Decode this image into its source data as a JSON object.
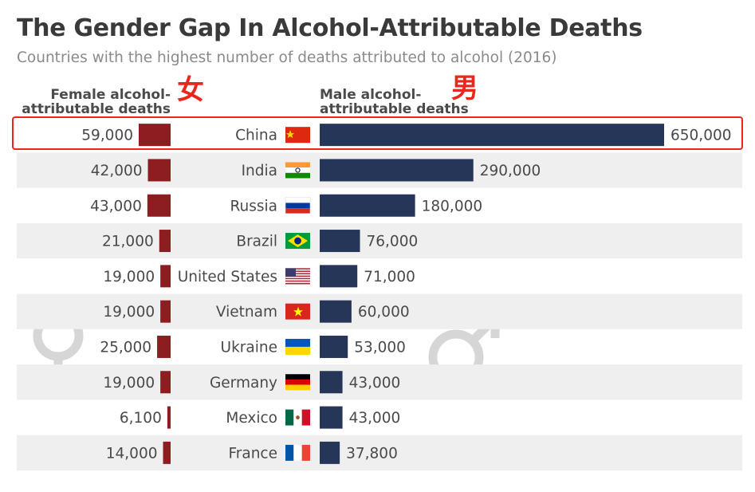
{
  "title": "The Gender Gap In Alcohol-Attributable Deaths",
  "subtitle": "Countries with the highest number of deaths attributed to alcohol (2016)",
  "female_header_line1": "Female alcohol-",
  "female_header_line2": "attributable deaths",
  "male_header_line1": "Male alcohol-",
  "male_header_line2": "attributable deaths",
  "female_cjk": "女",
  "male_cjk": "男",
  "colors": {
    "female_bar": "#8e1d21",
    "male_bar": "#263658",
    "row_stripe": "#efefef",
    "highlight": "#e8271f",
    "symbol": "#d6d6d6"
  },
  "chart_data": {
    "type": "bar",
    "title": "The Gender Gap In Alcohol-Attributable Deaths",
    "subtitle": "Countries with the highest number of deaths attributed to alcohol (2016)",
    "categories": [
      "China",
      "India",
      "Russia",
      "Brazil",
      "United States",
      "Vietnam",
      "Ukraine",
      "Germany",
      "Mexico",
      "France"
    ],
    "series": [
      {
        "name": "Female alcohol-attributable deaths",
        "values": [
          59000,
          42000,
          43000,
          21000,
          19000,
          19000,
          25000,
          19000,
          6100,
          14000
        ],
        "labels": [
          "59,000",
          "42,000",
          "43,000",
          "21,000",
          "19,000",
          "19,000",
          "25,000",
          "19,000",
          "6,100",
          "14,000"
        ]
      },
      {
        "name": "Male alcohol-attributable deaths",
        "values": [
          650000,
          290000,
          180000,
          76000,
          71000,
          60000,
          53000,
          43000,
          43000,
          37800
        ],
        "labels": [
          "650,000",
          "290,000",
          "180,000",
          "76,000",
          "71,000",
          "60,000",
          "53,000",
          "43,000",
          "43,000",
          "37,800"
        ]
      }
    ],
    "flags": [
      "china-flag-icon",
      "india-flag-icon",
      "russia-flag-icon",
      "brazil-flag-icon",
      "usa-flag-icon",
      "vietnam-flag-icon",
      "ukraine-flag-icon",
      "germany-flag-icon",
      "mexico-flag-icon",
      "france-flag-icon"
    ],
    "highlighted_category": "China"
  }
}
